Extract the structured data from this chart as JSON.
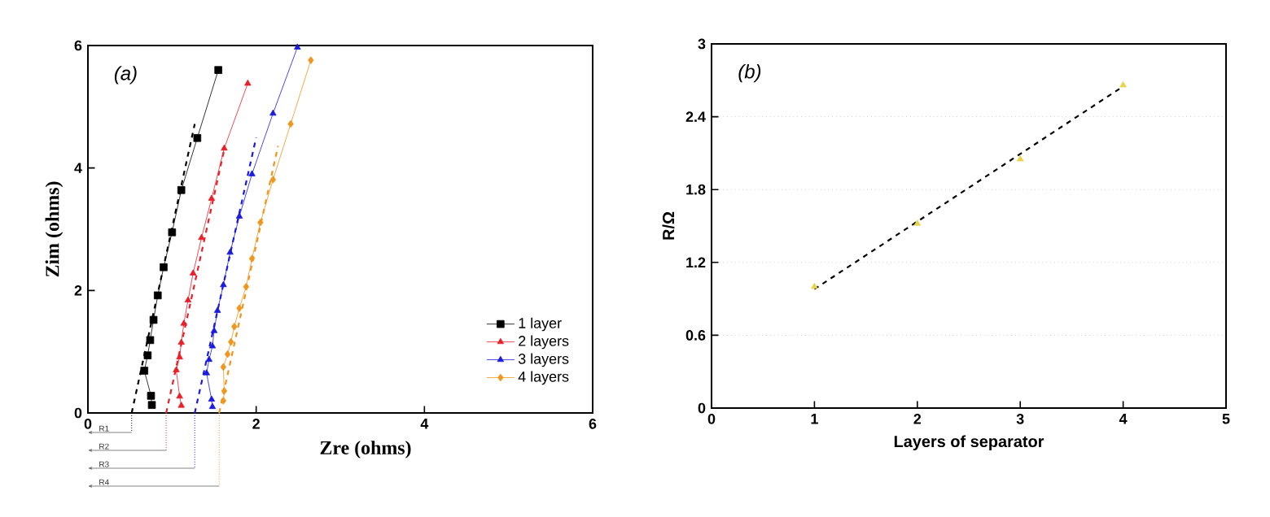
{
  "chart_data": [
    {
      "type": "line",
      "title": "(a)",
      "xlabel": "Zre (ohms)",
      "ylabel": "Zim (ohms)",
      "xlim": [
        0,
        6
      ],
      "ylim": [
        0,
        6
      ],
      "xticks": [
        0,
        2,
        4,
        6
      ],
      "yticks": [
        0,
        2,
        4,
        6
      ],
      "legend": "bottom right",
      "series": [
        {
          "name": "1 layer",
          "color": "#000000",
          "marker": "square",
          "x": [
            0.76,
            0.75,
            0.67,
            0.71,
            0.74,
            0.78,
            0.83,
            0.9,
            1.0,
            1.11,
            1.3,
            1.55
          ],
          "values": [
            0.13,
            0.28,
            0.69,
            0.94,
            1.19,
            1.52,
            1.92,
            2.38,
            2.95,
            3.64,
            4.49,
            5.6
          ]
        },
        {
          "name": "2 layers",
          "color": "#e8202a",
          "marker": "triangle",
          "x": [
            1.11,
            1.09,
            1.05,
            1.09,
            1.11,
            1.14,
            1.19,
            1.25,
            1.35,
            1.47,
            1.62,
            1.9
          ],
          "values": [
            0.12,
            0.27,
            0.7,
            0.91,
            1.15,
            1.46,
            1.84,
            2.28,
            2.86,
            3.5,
            4.32,
            5.38
          ]
        },
        {
          "name": "3 layers",
          "color": "#1a1ae0",
          "marker": "triangle",
          "x": [
            1.48,
            1.47,
            1.41,
            1.44,
            1.48,
            1.5,
            1.54,
            1.61,
            1.69,
            1.8,
            1.95,
            2.2,
            2.49
          ],
          "values": [
            0.1,
            0.22,
            0.65,
            0.87,
            1.09,
            1.34,
            1.67,
            2.09,
            2.62,
            3.21,
            3.9,
            4.89,
            5.97
          ]
        },
        {
          "name": "4 layers",
          "color": "#f0961e",
          "marker": "diamond",
          "x": [
            1.61,
            1.62,
            1.61,
            1.66,
            1.7,
            1.74,
            1.8,
            1.88,
            1.95,
            2.05,
            2.2,
            2.41,
            2.65
          ],
          "values": [
            0.2,
            0.36,
            0.75,
            0.96,
            1.16,
            1.41,
            1.71,
            2.06,
            2.52,
            3.11,
            3.81,
            4.72,
            5.76
          ]
        },
        {
          "type": "line",
          "color": "#000000",
          "line_style": "dashed",
          "marker": "none",
          "x": [
            0.52,
            1.27
          ],
          "values": [
            0,
            4.72
          ]
        },
        {
          "type": "line",
          "color": "#e8202a",
          "line_style": "dashed",
          "marker": "none",
          "x": [
            0.93,
            1.62
          ],
          "values": [
            0,
            4.3
          ]
        },
        {
          "type": "line",
          "color": "#1a1ae0",
          "line_style": "dashed",
          "marker": "none",
          "x": [
            1.27,
            2.0
          ],
          "values": [
            0,
            4.5
          ]
        },
        {
          "type": "line",
          "color": "#f0961e",
          "line_style": "dashed",
          "marker": "none",
          "x": [
            1.56,
            2.26
          ],
          "values": [
            0,
            4.36
          ]
        }
      ],
      "annotations": [
        "R1",
        "R2",
        "R3",
        "R4"
      ]
    },
    {
      "type": "scatter",
      "title": "(b)",
      "xlabel": "Layers of separator",
      "ylabel": "R/Ω",
      "xlim": [
        0,
        5
      ],
      "ylim": [
        0,
        3
      ],
      "xticks": [
        0,
        1,
        2,
        3,
        4,
        5
      ],
      "yticks": [
        0,
        0.6,
        1.2,
        1.8,
        2.4,
        3
      ],
      "grid": "y",
      "series": [
        {
          "type": "scatter",
          "color": "#e8d44a",
          "marker": "triangle",
          "x": [
            1,
            2,
            3,
            4
          ],
          "values": [
            1.0,
            1.52,
            2.05,
            2.66
          ]
        },
        {
          "type": "line",
          "color": "#000000",
          "line_style": "dashed",
          "marker": "none",
          "x": [
            1,
            4
          ],
          "values": [
            0.98,
            2.65
          ]
        }
      ]
    }
  ]
}
